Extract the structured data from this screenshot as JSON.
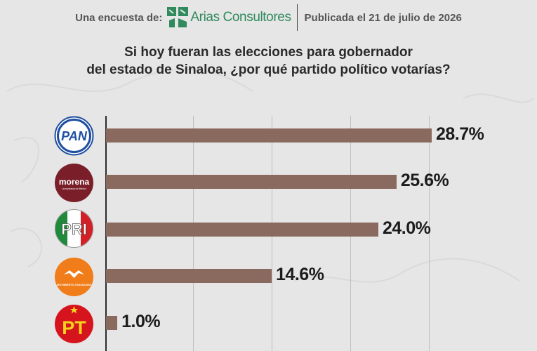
{
  "header": {
    "intro": "Una encuesta de:",
    "brand": "Arias Consultores",
    "published": "Publicada el 21 de julio de 2026"
  },
  "question": {
    "line1": "Si hoy fueran las elecciones para gobernador",
    "line2": "del estado de Sinaloa, ¿por qué partido político votarías?"
  },
  "colors": {
    "bar": "#8a6a5e",
    "brand": "#2f8a5c",
    "background": "#e6e6e6"
  },
  "logos": {
    "pan": "PAN",
    "morena": "morena",
    "morena_tag": "La esperanza de México",
    "pri": "PRI",
    "mc": "MOVIMIENTO CIUDADANO",
    "pt": "PT"
  },
  "chart_data": {
    "type": "bar",
    "orientation": "horizontal",
    "categories": [
      "PAN",
      "Morena",
      "PRI",
      "Movimiento Ciudadano",
      "PT"
    ],
    "values": [
      28.7,
      25.6,
      24.0,
      14.6,
      1.0
    ],
    "labels": [
      "28.7%",
      "25.6%",
      "24.0%",
      "14.6%",
      "1.0%"
    ],
    "xlim": [
      0,
      30
    ],
    "grid": true
  }
}
